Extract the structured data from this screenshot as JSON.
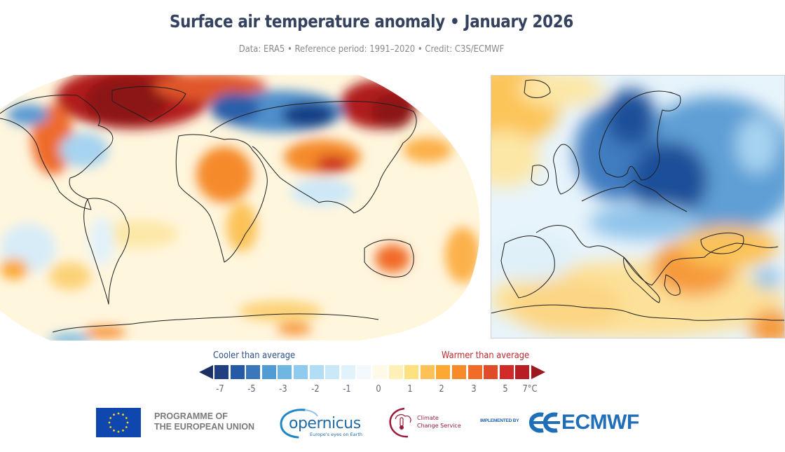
{
  "header": {
    "title": "Surface air temperature anomaly • January 2026",
    "subtitle": "Data: ERA5 • Reference period: 1991–2020 • Credit: C3S/ECMWF"
  },
  "maps": {
    "world": {
      "label": "Global map of surface air temperature anomaly",
      "projection": "Robinson",
      "highlights": [
        {
          "region": "Arctic Canada / Greenland",
          "anomaly": "much warmer"
        },
        {
          "region": "Northern Europe / Western Russia",
          "anomaly": "much cooler"
        },
        {
          "region": "Eastern Siberia",
          "anomaly": "much warmer"
        },
        {
          "region": "Eastern North America",
          "anomaly": "cooler"
        },
        {
          "region": "Western North America",
          "anomaly": "warmer"
        },
        {
          "region": "North Africa / Sahel",
          "anomaly": "warmer"
        },
        {
          "region": "Central Asia",
          "anomaly": "warmer"
        },
        {
          "region": "Australia",
          "anomaly": "warmer"
        }
      ]
    },
    "europe": {
      "label": "European map of surface air temperature anomaly",
      "highlights": [
        {
          "region": "Scandinavia / Baltic / Western Russia",
          "anomaly": "much cooler"
        },
        {
          "region": "Balkans / Greece / Turkey",
          "anomaly": "warmer"
        },
        {
          "region": "Mediterranean / North Africa",
          "anomaly": "slightly warmer"
        },
        {
          "region": "Iceland",
          "anomaly": "warmer"
        }
      ]
    }
  },
  "legend": {
    "cool_label": "Cooler than average",
    "warm_label": "Warmer than average",
    "colors": {
      "cool_text": "#2c4e8c",
      "warm_text": "#c0282e",
      "arrow_low": "#1c2f62",
      "arrow_high": "#9a1a1e"
    },
    "bins": [
      "#1f3f80",
      "#2659a6",
      "#3a77bb",
      "#519dd3",
      "#6fb6e1",
      "#8fcbee",
      "#b1def5",
      "#cbe8f7",
      "#e2f2fa",
      "#f3f9fd",
      "#fffae8",
      "#fff0b8",
      "#fce17e",
      "#fdc257",
      "#fca832",
      "#f78b2a",
      "#f06c28",
      "#e04b2a",
      "#d12a28",
      "#b81e23"
    ],
    "ticks": [
      "-7",
      "-5",
      "-3",
      "-2",
      "-1",
      "0",
      "1",
      "2",
      "3",
      "5",
      "7°C"
    ],
    "unit": "°C"
  },
  "footer": {
    "eu_line1": "PROGRAMME OF",
    "eu_line2": "THE EUROPEAN UNION",
    "copernicus_name": "opernicus",
    "copernicus_tagline": "Europe's eyes on Earth",
    "c3s_line1": "Climate",
    "c3s_line2": "Change Service",
    "implemented_by": "IMPLEMENTED BY",
    "ecmwf_name": "ECMWF"
  }
}
